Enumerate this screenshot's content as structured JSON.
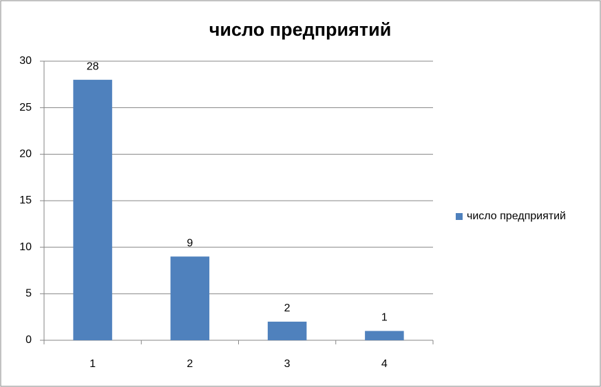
{
  "chart_data": {
    "type": "bar",
    "title": "число предприятий",
    "categories": [
      "1",
      "2",
      "3",
      "4"
    ],
    "series": [
      {
        "name": "число предприятий",
        "color": "#4f81bd",
        "values": [
          28,
          9,
          2,
          1
        ]
      }
    ],
    "ylim": [
      0,
      30
    ],
    "yticks": [
      0,
      5,
      10,
      15,
      20,
      25,
      30
    ],
    "grid": true,
    "legend": "right",
    "data_labels": true
  }
}
